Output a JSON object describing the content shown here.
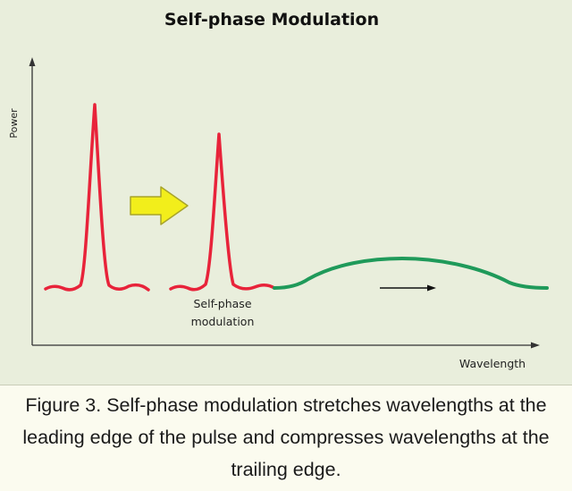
{
  "title": "Self-phase Modulation",
  "axes": {
    "y_label": "Power",
    "x_label": "Wavelength"
  },
  "annotation": {
    "line1": "Self-phase",
    "line2": "modulation"
  },
  "caption": "Figure 3. Self-phase modulation stretches wavelengths at the leading edge of the pulse and compresses wavelengths at the trailing edge.",
  "colors": {
    "pulse": "#e8233a",
    "broadened": "#1f9a5a",
    "arrow_fill": "#f2ee1b",
    "arrow_outline": "#a8a42a",
    "axis": "#333333"
  }
}
